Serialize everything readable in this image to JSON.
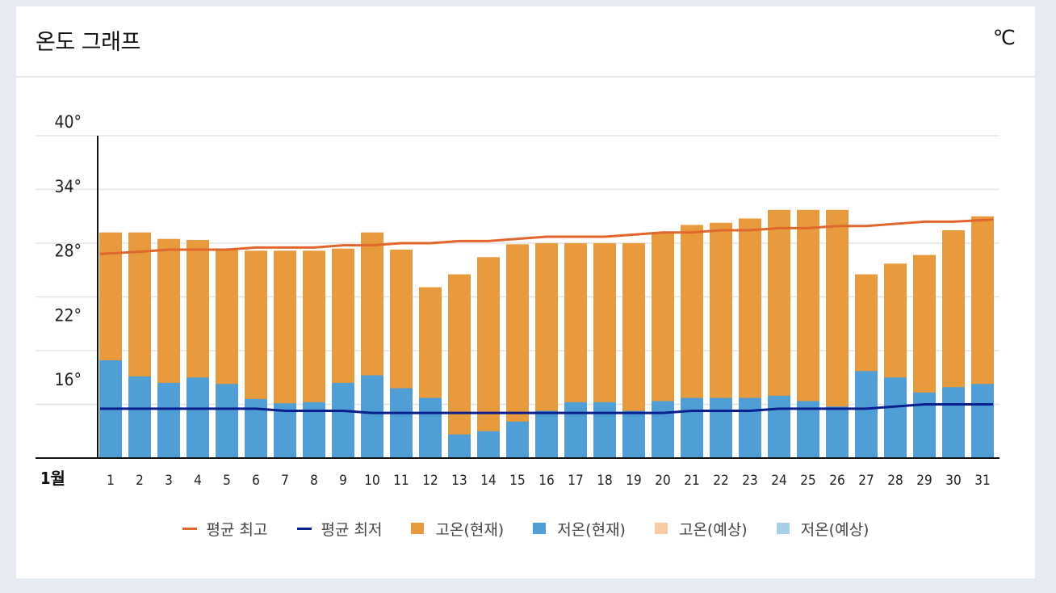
{
  "header": {
    "title": "온도 그래프",
    "unit": "℃"
  },
  "chart_data": {
    "type": "bar",
    "month_label": "1월",
    "categories": [
      "1",
      "2",
      "3",
      "4",
      "5",
      "6",
      "7",
      "8",
      "9",
      "10",
      "11",
      "12",
      "13",
      "14",
      "15",
      "16",
      "17",
      "18",
      "19",
      "20",
      "21",
      "22",
      "23",
      "24",
      "25",
      "26",
      "27",
      "28",
      "29",
      "30",
      "31"
    ],
    "y_ticks": [
      {
        "value": 16,
        "label": "16°"
      },
      {
        "value": 22,
        "label": "22°"
      },
      {
        "value": 28,
        "label": "28°"
      },
      {
        "value": 34,
        "label": "34°"
      },
      {
        "value": 40,
        "label": "40°"
      }
    ],
    "ylim": [
      10,
      40
    ],
    "grid": true,
    "series": [
      {
        "name": "고온(현재)",
        "kind": "bar",
        "color": "#e89b3c",
        "values": [
          31.0,
          31.0,
          30.4,
          30.3,
          29.4,
          29.3,
          29.3,
          29.3,
          29.5,
          31.0,
          29.4,
          25.9,
          27.1,
          28.7,
          29.9,
          30.0,
          30.0,
          30.0,
          30.0,
          31.0,
          31.7,
          31.9,
          32.3,
          33.1,
          33.1,
          33.1,
          27.1,
          28.1,
          28.9,
          31.2,
          32.5
        ]
      },
      {
        "name": "저온(현재)",
        "kind": "bar",
        "color": "#4f9fd6",
        "values": [
          19.1,
          17.6,
          17.0,
          17.5,
          16.9,
          15.5,
          15.1,
          15.2,
          17.0,
          17.7,
          16.5,
          15.6,
          12.2,
          12.5,
          13.4,
          14.4,
          15.2,
          15.2,
          14.4,
          15.3,
          15.6,
          15.6,
          15.6,
          15.8,
          15.3,
          14.8,
          18.1,
          17.5,
          16.1,
          16.6,
          16.9
        ]
      },
      {
        "name": "평균 최고",
        "kind": "line",
        "color": "#e0662d",
        "values": [
          29.0,
          29.2,
          29.4,
          29.4,
          29.4,
          29.6,
          29.6,
          29.6,
          29.8,
          29.8,
          30.0,
          30.0,
          30.2,
          30.2,
          30.4,
          30.6,
          30.6,
          30.6,
          30.8,
          31.0,
          31.0,
          31.2,
          31.2,
          31.4,
          31.4,
          31.6,
          31.6,
          31.8,
          32.0,
          32.0,
          32.2
        ]
      },
      {
        "name": "평균 최저",
        "kind": "line",
        "color": "#0a1f8f",
        "values": [
          14.6,
          14.6,
          14.6,
          14.6,
          14.6,
          14.6,
          14.4,
          14.4,
          14.4,
          14.2,
          14.2,
          14.2,
          14.2,
          14.2,
          14.2,
          14.2,
          14.2,
          14.2,
          14.2,
          14.2,
          14.4,
          14.4,
          14.4,
          14.6,
          14.6,
          14.6,
          14.6,
          14.8,
          15.0,
          15.0,
          15.0
        ]
      }
    ],
    "legend": [
      {
        "label": "평균 최고",
        "type": "line",
        "color": "#e0662d"
      },
      {
        "label": "평균 최저",
        "type": "line",
        "color": "#0a1f8f"
      },
      {
        "label": "고온(현재)",
        "type": "box",
        "color": "#e89b3c"
      },
      {
        "label": "저온(현재)",
        "type": "box",
        "color": "#4f9fd6"
      },
      {
        "label": "고온(예상)",
        "type": "box",
        "color": "#f8caa3"
      },
      {
        "label": "저온(예상)",
        "type": "box",
        "color": "#a7cfe8"
      }
    ],
    "legend_position": "bottom"
  }
}
